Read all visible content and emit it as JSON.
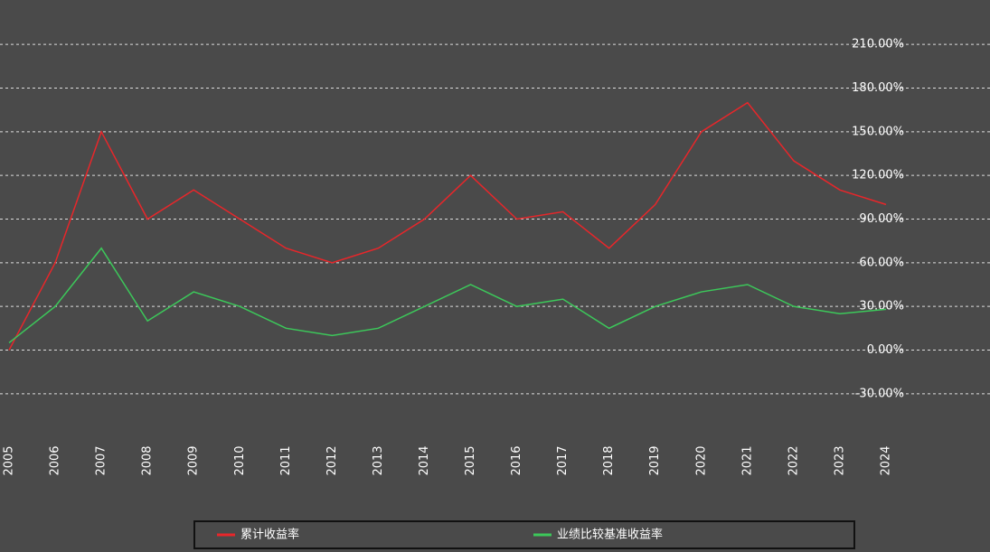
{
  "chart_data": {
    "type": "line",
    "categories": [
      "2005",
      "2006",
      "2007",
      "2008",
      "2009",
      "2010",
      "2011",
      "2012",
      "2013",
      "2014",
      "2015",
      "2016",
      "2017",
      "2018",
      "2019",
      "2020",
      "2021",
      "2022",
      "2023",
      "2024"
    ],
    "series": [
      {
        "name": "累计收益率",
        "color": "#e8262a",
        "values": [
          0,
          60,
          150,
          90,
          110,
          90,
          70,
          60,
          70,
          90,
          120,
          90,
          95,
          70,
          100,
          150,
          170,
          130,
          110,
          100
        ]
      },
      {
        "name": "业绩比较基准收益率",
        "color": "#3cc85a",
        "values": [
          5,
          30,
          70,
          20,
          40,
          30,
          15,
          10,
          15,
          30,
          45,
          30,
          35,
          15,
          30,
          40,
          45,
          30,
          25,
          28
        ]
      }
    ],
    "ylim": [
      -45,
      225
    ],
    "yticks": [
      {
        "value": -30,
        "label": "-30.00%"
      },
      {
        "value": 0,
        "label": "0.00%"
      },
      {
        "value": 30,
        "label": "30.00%"
      },
      {
        "value": 60,
        "label": "60.00%"
      },
      {
        "value": 90,
        "label": "90.00%"
      },
      {
        "value": 120,
        "label": "120.00%"
      },
      {
        "value": 150,
        "label": "150.00%"
      },
      {
        "value": 180,
        "label": "180.00%"
      },
      {
        "value": 210,
        "label": "210.00%"
      }
    ],
    "grid": true
  }
}
